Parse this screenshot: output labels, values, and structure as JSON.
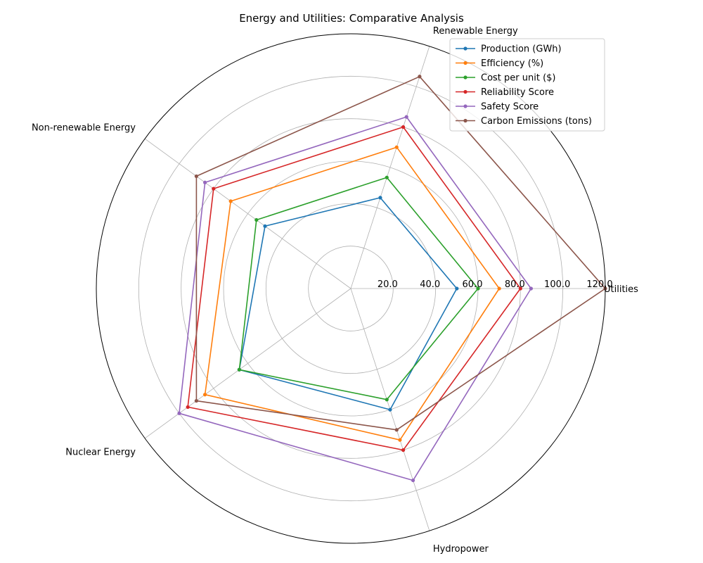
{
  "chart_data": {
    "type": "radar",
    "title": "Energy and Utilities: Comparative Analysis",
    "categories": [
      "Utilities",
      "Renewable Energy",
      "Non-renewable Energy",
      "Nuclear Energy",
      "Hydropower"
    ],
    "rmax": 120,
    "rticks": [
      20,
      40,
      60,
      80,
      100,
      120
    ],
    "rtick_labels": [
      "20.0",
      "40.0",
      "60.0",
      "80.0",
      "100.0",
      "120.0"
    ],
    "grid": true,
    "legend_position": "top-right",
    "series": [
      {
        "name": "Production (GWh)",
        "color": "#1f77b4",
        "values": [
          50,
          45,
          50,
          65,
          60
        ]
      },
      {
        "name": "Efficiency (%)",
        "color": "#ff7f0e",
        "values": [
          70,
          70,
          70,
          85,
          75
        ]
      },
      {
        "name": "Cost per unit ($)",
        "color": "#2ca02c",
        "values": [
          60,
          55,
          55,
          65,
          55
        ]
      },
      {
        "name": "Reliability Score",
        "color": "#d62728",
        "values": [
          80,
          80,
          80,
          95,
          80
        ]
      },
      {
        "name": "Safety Score",
        "color": "#9467bd",
        "values": [
          85,
          85,
          85,
          100,
          95
        ]
      },
      {
        "name": "Carbon Emissions (tons)",
        "color": "#8c564b",
        "values": [
          120,
          105,
          90,
          90,
          70
        ]
      }
    ]
  }
}
